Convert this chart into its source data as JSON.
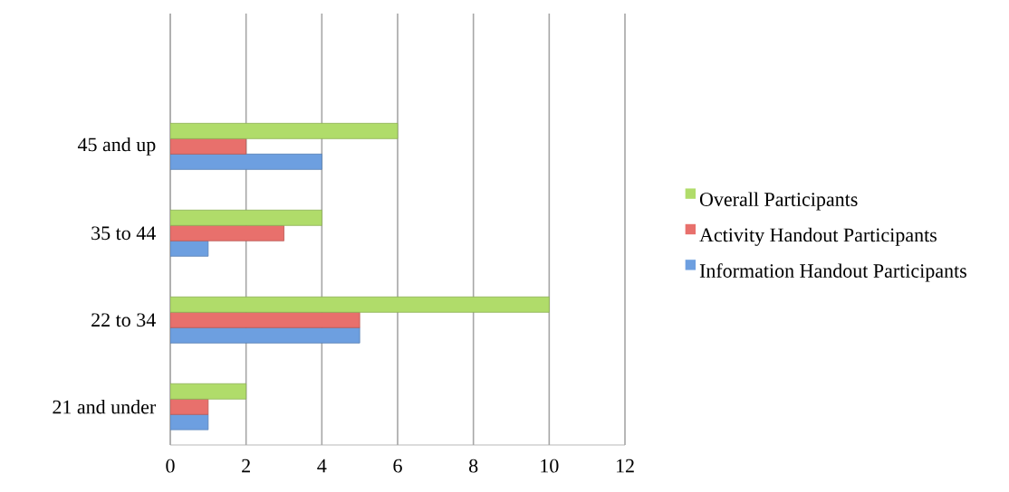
{
  "chart_data": {
    "type": "bar",
    "orientation": "horizontal",
    "categories": [
      "45 and up",
      "35 to 44",
      "22 to 34",
      "21 and under"
    ],
    "series": [
      {
        "name": "Information Handout Participants",
        "color": "#6d9fe0",
        "values": [
          4,
          1,
          5,
          1
        ]
      },
      {
        "name": "Activity Handout Participants",
        "color": "#e8706c",
        "values": [
          2,
          3,
          5,
          1
        ]
      },
      {
        "name": "Overall Participants",
        "color": "#b0dc6a",
        "values": [
          6,
          4,
          10,
          2
        ]
      }
    ],
    "xlim": [
      0,
      12
    ],
    "xticks": [
      0,
      2,
      4,
      6,
      8,
      10,
      12
    ],
    "grid": "x",
    "legend": "right"
  }
}
